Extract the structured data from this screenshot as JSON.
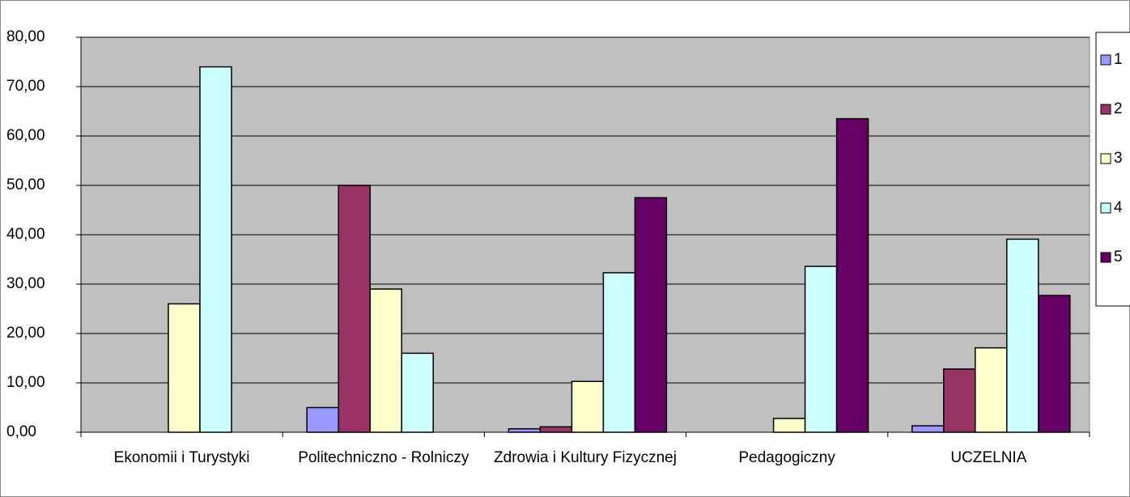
{
  "chart_data": {
    "type": "bar",
    "categories": [
      "Ekonomii i Turystyki",
      "Politechniczno - Rolniczy",
      "Zdrowia i Kultury Fizycznej",
      "Pedagogiczny",
      "UCZELNIA"
    ],
    "series": [
      {
        "name": "1",
        "color": "#9999ff",
        "values": [
          0,
          5,
          0.7,
          0,
          1.3
        ]
      },
      {
        "name": "2",
        "color": "#993366",
        "values": [
          0,
          50,
          1.1,
          0,
          12.8
        ]
      },
      {
        "name": "3",
        "color": "#ffffcc",
        "values": [
          26,
          29,
          10.3,
          2.8,
          17.1
        ]
      },
      {
        "name": "4",
        "color": "#ccffff",
        "values": [
          74,
          16,
          32.3,
          33.6,
          39.1
        ]
      },
      {
        "name": "5",
        "color": "#660066",
        "values": [
          0,
          0,
          47.5,
          63.5,
          27.7
        ]
      }
    ],
    "ylim": [
      0,
      80
    ],
    "yticks": [
      {
        "value": 0,
        "label": "0,00"
      },
      {
        "value": 10,
        "label": "10,00"
      },
      {
        "value": 20,
        "label": "20,00"
      },
      {
        "value": 30,
        "label": "30,00"
      },
      {
        "value": 40,
        "label": "40,00"
      },
      {
        "value": 50,
        "label": "50,00"
      },
      {
        "value": 60,
        "label": "60,00"
      },
      {
        "value": 70,
        "label": "70,00"
      },
      {
        "value": 80,
        "label": "80,00"
      }
    ],
    "grid": true,
    "legend": "right"
  }
}
